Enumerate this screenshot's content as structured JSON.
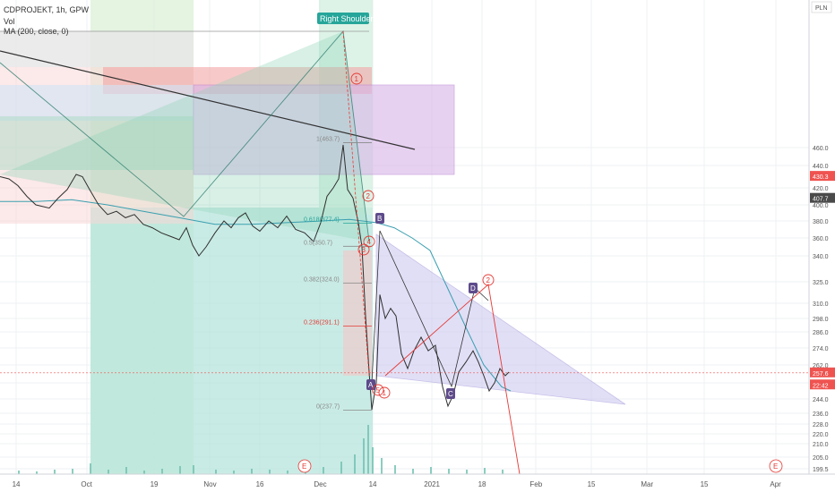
{
  "header": {
    "symbol_line": "CDPROJEKT, 1h, GPW",
    "volume_label": "Vol",
    "ma_label": "MA (200, close, 0)"
  },
  "currency": "PLN",
  "colors": {
    "price_line": "#2f2f2f",
    "ma_line": "#3a9fb0",
    "bull_volume": "#6fc0b0",
    "bear_volume": "#ef9a9a",
    "zone_red": "#f6b8b8",
    "zone_purple": "#d8b4e8",
    "zone_green": "#8fd3b8",
    "triangle_fill": "#c9c6ef",
    "fib_red": "#e53935",
    "fib_teal": "#26a69a",
    "marker_purple": "#5e4b8b",
    "wave_red": "#e53935",
    "current_price_badge": "#ef5350",
    "dark_badge": "#4a4a4a",
    "right_shoulder_badge": "#26a69a"
  },
  "chart_data": {
    "type": "line",
    "title": "CDPROJEKT, 1h, GPW",
    "x_ticks": [
      "14",
      "Oct",
      "19",
      "Nov",
      "16",
      "Dec",
      "14",
      "2021",
      "18",
      "Feb",
      "15",
      "Mar",
      "15",
      "Apr"
    ],
    "y_ticks": [
      199.5,
      205.0,
      210.0,
      220.0,
      228.0,
      236.0,
      244.0,
      252.0,
      262.0,
      274.0,
      286.0,
      298.0,
      310.0,
      325.0,
      340.0,
      360.0,
      380.0,
      400.0,
      420.0,
      440.0,
      460.0
    ],
    "ylim": [
      197,
      478
    ],
    "price_series": [
      [
        0,
        430
      ],
      [
        10,
        428
      ],
      [
        20,
        422
      ],
      [
        30,
        410
      ],
      [
        40,
        400
      ],
      [
        55,
        396
      ],
      [
        65,
        408
      ],
      [
        75,
        418
      ],
      [
        85,
        432
      ],
      [
        92,
        430
      ],
      [
        100,
        418
      ],
      [
        110,
        400
      ],
      [
        120,
        388
      ],
      [
        130,
        392
      ],
      [
        140,
        384
      ],
      [
        150,
        388
      ],
      [
        160,
        376
      ],
      [
        170,
        372
      ],
      [
        180,
        366
      ],
      [
        190,
        362
      ],
      [
        200,
        358
      ],
      [
        208,
        372
      ],
      [
        215,
        352
      ],
      [
        222,
        340
      ],
      [
        230,
        350
      ],
      [
        240,
        366
      ],
      [
        250,
        380
      ],
      [
        258,
        372
      ],
      [
        266,
        384
      ],
      [
        274,
        390
      ],
      [
        282,
        374
      ],
      [
        290,
        368
      ],
      [
        300,
        380
      ],
      [
        310,
        372
      ],
      [
        320,
        386
      ],
      [
        330,
        370
      ],
      [
        340,
        366
      ],
      [
        350,
        356
      ],
      [
        358,
        378
      ],
      [
        365,
        410
      ],
      [
        372,
        420
      ],
      [
        378,
        428
      ],
      [
        383,
        462
      ],
      [
        388,
        418
      ],
      [
        394,
        408
      ],
      [
        400,
        378
      ],
      [
        404,
        350
      ],
      [
        408,
        300
      ],
      [
        412,
        258
      ],
      [
        415,
        238
      ],
      [
        420,
        252
      ],
      [
        424,
        316
      ],
      [
        430,
        298
      ],
      [
        436,
        306
      ],
      [
        442,
        300
      ],
      [
        448,
        270
      ],
      [
        455,
        260
      ],
      [
        462,
        272
      ],
      [
        470,
        282
      ],
      [
        478,
        272
      ],
      [
        486,
        276
      ],
      [
        494,
        250
      ],
      [
        500,
        240
      ],
      [
        506,
        246
      ],
      [
        512,
        258
      ],
      [
        520,
        264
      ],
      [
        528,
        272
      ],
      [
        534,
        264
      ],
      [
        540,
        256
      ],
      [
        546,
        248
      ],
      [
        552,
        252
      ],
      [
        558,
        260
      ],
      [
        564,
        256
      ],
      [
        568,
        258
      ]
    ],
    "ma_series": [
      [
        0,
        404
      ],
      [
        40,
        404
      ],
      [
        80,
        406
      ],
      [
        120,
        400
      ],
      [
        160,
        392
      ],
      [
        200,
        384
      ],
      [
        240,
        376
      ],
      [
        280,
        376
      ],
      [
        320,
        378
      ],
      [
        360,
        380
      ],
      [
        390,
        382
      ],
      [
        420,
        378
      ],
      [
        440,
        372
      ],
      [
        460,
        360
      ],
      [
        480,
        346
      ],
      [
        500,
        320
      ],
      [
        520,
        290
      ],
      [
        540,
        262
      ],
      [
        560,
        250
      ],
      [
        570,
        248
      ]
    ],
    "volume_series": [
      [
        20,
        4
      ],
      [
        40,
        3
      ],
      [
        60,
        5
      ],
      [
        80,
        6
      ],
      [
        100,
        12
      ],
      [
        120,
        5
      ],
      [
        140,
        8
      ],
      [
        160,
        4
      ],
      [
        180,
        6
      ],
      [
        200,
        9
      ],
      [
        215,
        10
      ],
      [
        240,
        5
      ],
      [
        260,
        4
      ],
      [
        280,
        6
      ],
      [
        300,
        5
      ],
      [
        320,
        4
      ],
      [
        340,
        6
      ],
      [
        360,
        8
      ],
      [
        380,
        14
      ],
      [
        395,
        22
      ],
      [
        405,
        40
      ],
      [
        410,
        55
      ],
      [
        415,
        30
      ],
      [
        425,
        18
      ],
      [
        440,
        10
      ],
      [
        460,
        6
      ],
      [
        480,
        8
      ],
      [
        500,
        6
      ],
      [
        520,
        5
      ],
      [
        540,
        7
      ],
      [
        560,
        5
      ]
    ],
    "fib_levels": [
      {
        "label": "1(463.7)",
        "value": 463.7
      },
      {
        "label": "0.618(377.4)",
        "value": 377.4
      },
      {
        "label": "0.5(350.7)",
        "value": 350.7
      },
      {
        "label": "0.382(324.0)",
        "value": 324.0
      },
      {
        "label": "0.236(291.1)",
        "value": 291.1
      },
      {
        "label": "0(237.7)",
        "value": 237.7
      }
    ],
    "annotations": {
      "right_shoulder": "Right Shoulder",
      "pattern_points": [
        "A",
        "B",
        "C",
        "D"
      ],
      "wave_labels_red": [
        "1",
        "2",
        "3",
        "4",
        "5",
        "1",
        "2"
      ],
      "bottom_markers": [
        "E",
        "E"
      ]
    },
    "price_badges": [
      {
        "label": "430.3",
        "value": 430.3,
        "style": "red"
      },
      {
        "label": "407.7",
        "value": 407.7,
        "style": "dark"
      },
      {
        "label": "257.6",
        "value": 257.6,
        "style": "red"
      },
      {
        "label": "22:42",
        "value": 251.0,
        "style": "red"
      }
    ]
  }
}
